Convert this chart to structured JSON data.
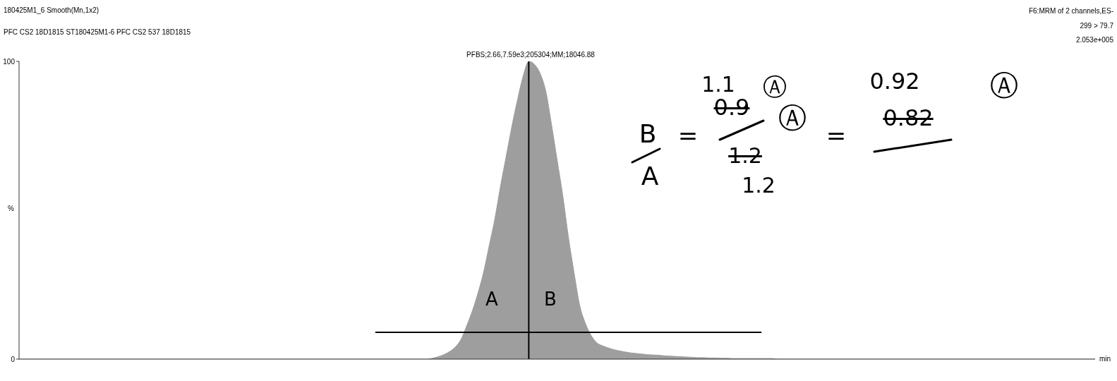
{
  "chart_data": {
    "type": "area",
    "title": "180425M1_6 Smooth(Mn,1x2)",
    "subtitle": "PFC CS2 18D1815 ST180425M1-6 PFC CS2 537 18D1815",
    "xlabel": "min",
    "ylabel": "%",
    "annotations": [
      "F6:MRM of 2 channels,ES-",
      "299 > 79.7",
      "2.053e+005",
      "PFBS;2.66,7.59e3;205304;MM;18046.88",
      "A",
      "B",
      "B",
      "A",
      "=",
      "1.1",
      "0.9",
      "Ⓐ",
      "1.2",
      "Ⓐ",
      "1.2",
      "=",
      "0.92",
      "0.82",
      "Ⓐ"
    ],
    "categories": [
      null,
      null,
      null,
      null,
      null,
      null,
      null,
      null,
      null,
      null,
      null,
      null,
      null,
      null,
      null,
      null,
      null,
      null,
      null,
      null,
      null,
      null,
      null,
      null,
      null,
      null,
      null,
      null,
      null,
      null,
      null,
      null,
      null,
      null,
      null,
      null,
      null,
      null,
      null,
      null,
      null,
      null,
      null,
      null,
      null,
      null,
      null,
      null,
      null,
      null,
      null,
      null,
      null,
      null,
      null,
      null,
      null,
      null,
      null,
      null,
      null,
      null,
      null,
      null,
      null,
      null,
      null,
      null,
      null,
      null,
      null,
      null,
      null,
      null,
      null,
      null,
      null,
      null,
      null,
      null,
      null,
      null,
      null,
      null,
      null,
      null,
      null,
      null,
      null,
      null,
      null,
      null,
      null,
      null,
      null,
      null,
      null,
      null,
      null,
      null,
      null,
      null,
      null,
      null,
      null,
      null,
      null,
      null,
      null,
      null,
      null,
      null,
      null,
      null,
      null,
      null,
      null,
      null,
      null,
      null,
      null,
      null,
      null,
      null,
      null,
      null,
      null,
      null,
      null,
      null,
      null,
      null,
      null,
      null,
      null,
      null,
      null,
      null,
      null,
      null,
      null,
      null,
      null,
      null,
      null,
      null,
      null,
      null,
      null,
      null,
      null,
      null,
      null,
      null,
      null,
      null,
      null,
      null,
      null,
      null,
      null,
      null,
      null,
      null,
      null,
      null,
      null,
      null,
      null,
      null,
      null,
      null,
      null,
      null,
      null,
      null,
      null,
      null,
      null,
      null,
      null,
      null,
      null,
      null,
      null,
      null,
      null,
      null,
      null,
      null,
      null
    ],
    "series": [
      {
        "color": "#9e9e9e",
        "values": [
          0,
          0,
          0,
          0,
          0,
          0,
          0,
          0,
          0,
          0,
          0,
          0,
          0,
          0,
          0,
          0,
          0,
          0,
          0,
          0,
          0,
          0,
          0,
          0,
          0,
          0,
          0,
          0,
          0,
          0,
          0,
          0,
          0,
          0,
          0,
          0,
          0,
          0,
          0,
          0,
          0,
          0,
          0,
          0,
          0,
          0,
          0,
          0,
          0,
          0,
          0,
          0,
          0,
          0,
          0,
          0,
          0,
          0,
          0,
          0,
          0,
          0,
          0,
          0,
          0,
          0,
          0,
          0,
          0,
          0,
          0,
          0,
          0,
          0.3,
          0.8,
          1.5,
          2.5,
          4,
          6.5,
          11,
          16,
          22,
          29,
          38,
          47,
          58,
          68,
          78,
          87,
          95,
          100,
          99,
          96,
          90,
          79,
          67,
          55,
          41,
          29,
          18,
          12,
          8,
          5.5,
          4.5,
          3.8,
          3.2,
          2.8,
          2.4,
          2.1,
          1.9,
          1.7,
          1.5,
          1.4,
          1.3,
          1.1,
          1,
          0.9,
          0.8,
          0.7,
          0.6,
          0.5,
          0.5,
          0.4,
          0.4,
          0.3,
          0.3,
          0.2,
          0.2,
          0.2,
          0.2,
          0.2,
          0.2,
          0.2,
          0.2,
          0,
          0,
          0,
          0,
          0,
          0,
          0,
          0,
          0,
          0,
          0,
          0,
          0,
          0,
          0,
          0,
          0,
          0,
          0,
          0,
          0,
          0,
          0,
          0,
          0,
          0,
          0,
          0,
          0,
          0,
          0,
          0,
          0,
          0,
          0,
          0,
          0,
          0,
          0,
          0,
          0,
          0,
          0,
          0,
          0,
          0,
          0,
          0,
          0,
          0,
          0,
          0,
          0,
          0,
          0,
          0,
          0
        ]
      },
      {
        "type": "line",
        "color": "#000000",
        "values": [
          null,
          null,
          null,
          null,
          null,
          null,
          null,
          null,
          null,
          null,
          null,
          null,
          null,
          null,
          null,
          null,
          null,
          null,
          null,
          null,
          null,
          null,
          null,
          null,
          null,
          null,
          null,
          null,
          null,
          null,
          null,
          null,
          null,
          null,
          null,
          null,
          null,
          null,
          null,
          null,
          null,
          null,
          null,
          null,
          null,
          null,
          null,
          null,
          null,
          null,
          null,
          null,
          null,
          null,
          null,
          null,
          null,
          null,
          null,
          null,
          null,
          null,
          null,
          9,
          9,
          9,
          9,
          9,
          9,
          9,
          9,
          9,
          9,
          9,
          9,
          9,
          9,
          9,
          9,
          9,
          9,
          9,
          9,
          9,
          9,
          9,
          9,
          9,
          9,
          9,
          9,
          9,
          9,
          9,
          9,
          9,
          9,
          9,
          9,
          9,
          9,
          9,
          9,
          9,
          9,
          9,
          9,
          9,
          9,
          9,
          9,
          9,
          9,
          9,
          9,
          9,
          9,
          9,
          9,
          9,
          9,
          9,
          9,
          9,
          9,
          9,
          9,
          9,
          9,
          9,
          9,
          9,
          null,
          null,
          null,
          null,
          null,
          null,
          null,
          null,
          null,
          null,
          null,
          null,
          null,
          null,
          null,
          null,
          null,
          null,
          null,
          null,
          null,
          null,
          null,
          null,
          null,
          null,
          null,
          null,
          null,
          null,
          null,
          null,
          null,
          null,
          null,
          null,
          null,
          null,
          null,
          null,
          null,
          null,
          null,
          null,
          null,
          null,
          null,
          null,
          null,
          null,
          null,
          null,
          null,
          null,
          null,
          null,
          null,
          null,
          null
        ]
      }
    ],
    "ylim": [
      0,
      100
    ],
    "yticks": [
      0,
      100
    ],
    "tick_labels": "y"
  }
}
